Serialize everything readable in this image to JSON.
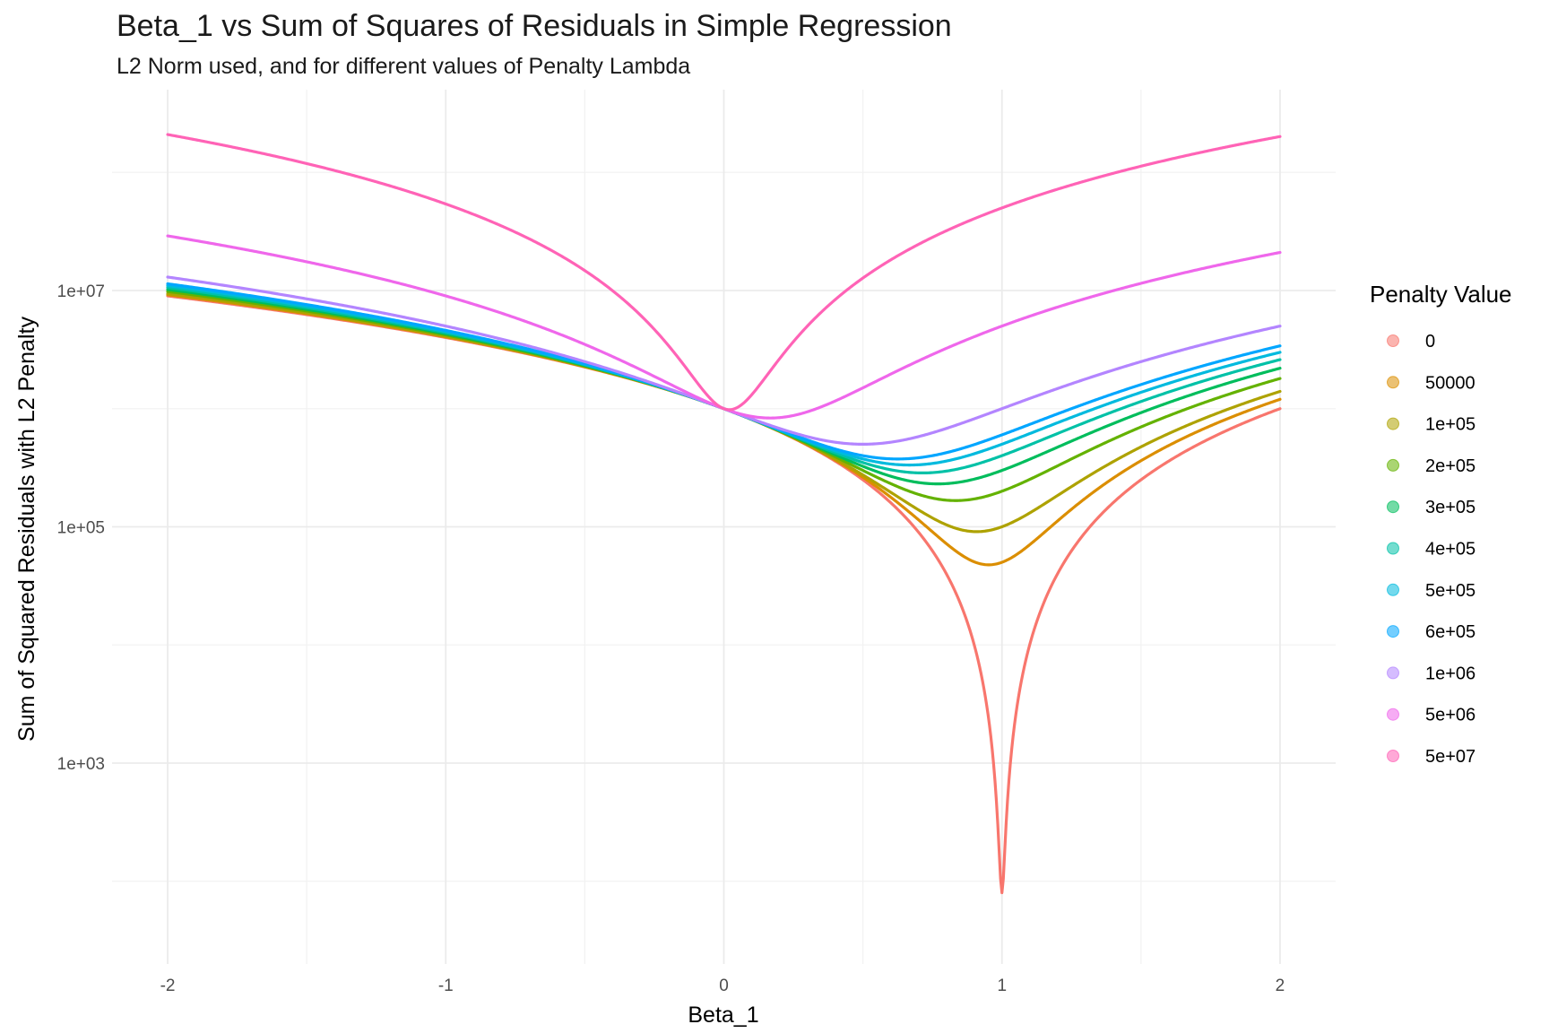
{
  "chart_data": {
    "type": "line",
    "title": "Beta_1 vs Sum of Squares of Residuals in Simple Regression",
    "subtitle": "L2 Norm used, and for different values of Penalty Lambda",
    "xlabel": "Beta_1",
    "ylabel": "Sum of Squared Residuals with L2 Penalty",
    "xlim": [
      -2.2,
      2.2
    ],
    "ylim_log10": [
      1.3,
      8.7
    ],
    "y_scale": "log10",
    "x_ticks": [
      -2,
      -1,
      0,
      1,
      2
    ],
    "x_tick_labels": [
      "-2",
      "-1",
      "0",
      "1",
      "2"
    ],
    "y_ticks": [
      1000,
      100000,
      10000000
    ],
    "y_tick_labels": [
      "1e+03",
      "1e+05",
      "1e+07"
    ],
    "grid": true,
    "legend_title": "Penalty Value",
    "legend_position": "right",
    "model": {
      "rss_at_zero": 1000000,
      "beta_hat": 1,
      "rss_min": 80
    },
    "series": [
      {
        "name": "0",
        "lambda": 0,
        "color": "#F8766D"
      },
      {
        "name": "50000",
        "lambda": 50000,
        "color": "#DB8E00"
      },
      {
        "name": "1e+05",
        "lambda": 100000,
        "color": "#AEA200"
      },
      {
        "name": "2e+05",
        "lambda": 200000,
        "color": "#64B200"
      },
      {
        "name": "3e+05",
        "lambda": 300000,
        "color": "#00BD5C"
      },
      {
        "name": "4e+05",
        "lambda": 400000,
        "color": "#00C1A7"
      },
      {
        "name": "5e+05",
        "lambda": 500000,
        "color": "#00BADE"
      },
      {
        "name": "6e+05",
        "lambda": 600000,
        "color": "#00A6FF"
      },
      {
        "name": "1e+06",
        "lambda": 1000000,
        "color": "#B385FF"
      },
      {
        "name": "5e+06",
        "lambda": 5000000,
        "color": "#EF67EB"
      },
      {
        "name": "5e+07",
        "lambda": 50000000,
        "color": "#FF63B6"
      }
    ]
  }
}
